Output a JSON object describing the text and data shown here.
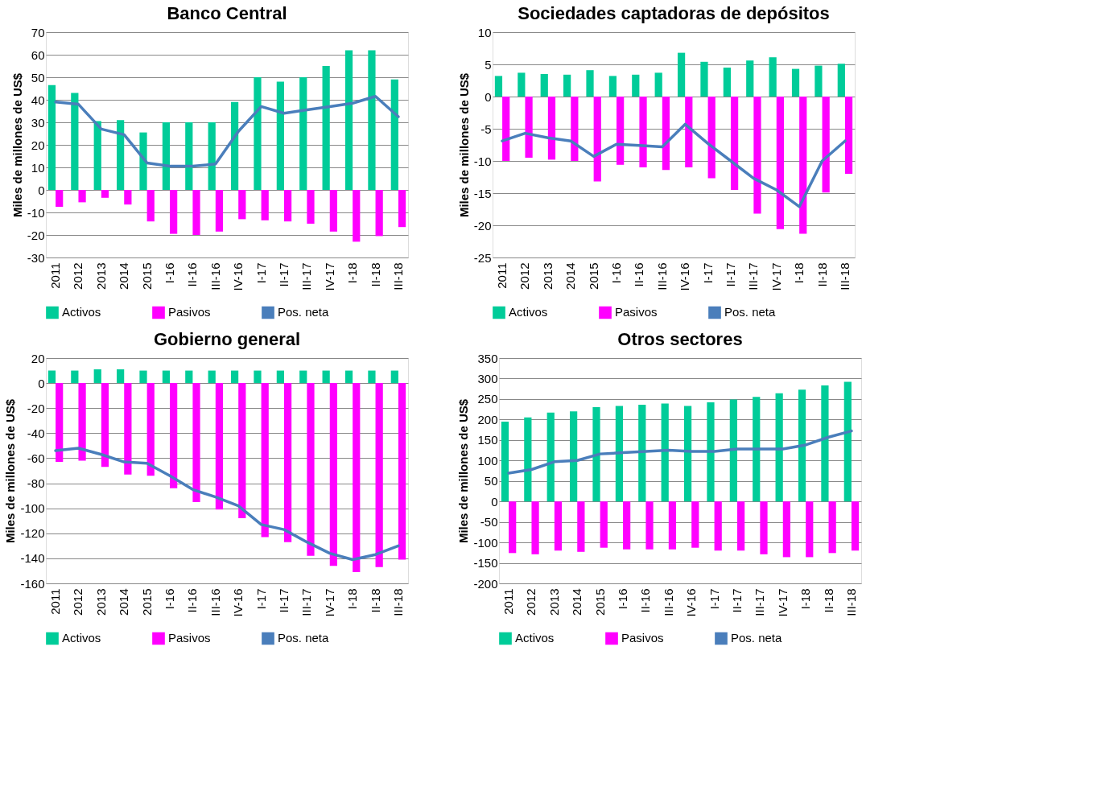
{
  "chart_data": [
    {
      "type": "bar",
      "title": "Banco Central",
      "ylabel": "Miles de millones de US$",
      "categories": [
        "2011",
        "2012",
        "2013",
        "2014",
        "2015",
        "I-16",
        "II-16",
        "III-16",
        "IV-16",
        "I-17",
        "II-17",
        "III-17",
        "IV-17",
        "I-18",
        "II-18",
        "III-18"
      ],
      "ylim": [
        -30,
        70
      ],
      "yticks": [
        -30,
        -20,
        -10,
        0,
        10,
        20,
        30,
        40,
        50,
        60,
        70
      ],
      "grid": "y",
      "legend": "bottom",
      "series": [
        {
          "name": "Activos",
          "color": "#00cc99",
          "values": [
            46.5,
            43,
            30.5,
            31,
            25.5,
            30,
            30,
            30,
            39,
            50,
            48,
            50,
            55,
            62,
            62,
            49
          ]
        },
        {
          "name": "Pasivos",
          "color": "#ff00ff",
          "values": [
            -7.5,
            -5.5,
            -3.5,
            -6.5,
            -14,
            -19.5,
            -20,
            -18.5,
            -13,
            -13.5,
            -14,
            -15,
            -18.5,
            -23,
            -20.5,
            -16.5
          ]
        },
        {
          "name": "Pos. neta",
          "color": "#4a7ebb",
          "type": "line",
          "values": [
            39,
            38,
            27,
            24.5,
            12,
            10.5,
            10.5,
            11.5,
            26,
            37,
            34,
            35.5,
            37,
            38.5,
            41.5,
            32.5
          ]
        }
      ]
    },
    {
      "type": "bar",
      "title": "Sociedades captadoras de depósitos",
      "ylabel": "Miles de millones de US$",
      "categories": [
        "2011",
        "2012",
        "2013",
        "2014",
        "2015",
        "I-16",
        "II-16",
        "III-16",
        "IV-16",
        "I-17",
        "II-17",
        "III-17",
        "IV-17",
        "I-18",
        "II-18",
        "III-18"
      ],
      "ylim": [
        -25,
        10
      ],
      "yticks": [
        -25,
        -20,
        -15,
        -10,
        -5,
        0,
        5,
        10
      ],
      "grid": "y",
      "legend": "bottom",
      "series": [
        {
          "name": "Activos",
          "color": "#00cc99",
          "values": [
            3.2,
            3.7,
            3.5,
            3.4,
            4.1,
            3.2,
            3.4,
            3.7,
            6.8,
            5.4,
            4.5,
            5.6,
            6.1,
            4.3,
            4.8,
            5.1
          ]
        },
        {
          "name": "Pasivos",
          "color": "#ff00ff",
          "values": [
            -10,
            -9.5,
            -9.8,
            -10,
            -13.2,
            -10.6,
            -11,
            -11.4,
            -11,
            -12.7,
            -14.5,
            -18.2,
            -20.6,
            -21.3,
            -14.9,
            -12
          ]
        },
        {
          "name": "Pos. neta",
          "color": "#4a7ebb",
          "type": "line",
          "values": [
            -6.9,
            -5.7,
            -6.4,
            -6.9,
            -9.3,
            -7.4,
            -7.6,
            -7.8,
            -4.3,
            -7.3,
            -10,
            -12.7,
            -14.5,
            -17.1,
            -10,
            -6.9
          ]
        }
      ]
    },
    {
      "type": "bar",
      "title": "Gobierno general",
      "ylabel": "Miles de millones de US$",
      "categories": [
        "2011",
        "2012",
        "2013",
        "2014",
        "2015",
        "I-16",
        "II-16",
        "III-16",
        "IV-16",
        "I-17",
        "II-17",
        "III-17",
        "IV-17",
        "I-18",
        "II-18",
        "III-18"
      ],
      "ylim": [
        -160,
        20
      ],
      "yticks": [
        -160,
        -140,
        -120,
        -100,
        -80,
        -60,
        -40,
        -20,
        0,
        20
      ],
      "grid": "y",
      "legend": "bottom",
      "series": [
        {
          "name": "Activos",
          "color": "#00cc99",
          "values": [
            10,
            10,
            11,
            11,
            10,
            10,
            10,
            10,
            10,
            10,
            10,
            10,
            10,
            10,
            10,
            10
          ]
        },
        {
          "name": "Pasivos",
          "color": "#ff00ff",
          "values": [
            -63,
            -62,
            -67,
            -73,
            -74,
            -84,
            -95,
            -101,
            -108,
            -123,
            -127,
            -138,
            -146,
            -151,
            -147,
            -141
          ]
        },
        {
          "name": "Pos. neta",
          "color": "#4a7ebb",
          "type": "line",
          "values": [
            -54,
            -52,
            -57,
            -63,
            -64,
            -74,
            -85,
            -91,
            -98,
            -113,
            -117,
            -127,
            -136,
            -141,
            -137,
            -130
          ]
        }
      ]
    },
    {
      "type": "bar",
      "title": "Otros sectores",
      "ylabel": "Miles de millones de US$",
      "categories": [
        "2011",
        "2012",
        "2013",
        "2014",
        "2015",
        "I-16",
        "II-16",
        "III-16",
        "IV-16",
        "I-17",
        "II-17",
        "III-17",
        "IV-17",
        "I-18",
        "II-18",
        "III-18"
      ],
      "ylim": [
        -200,
        350
      ],
      "yticks": [
        -200,
        -150,
        -100,
        -50,
        0,
        50,
        100,
        150,
        200,
        250,
        300,
        350
      ],
      "grid": "y",
      "legend": "bottom",
      "series": [
        {
          "name": "Activos",
          "color": "#00cc99",
          "values": [
            195,
            205,
            217,
            220,
            230,
            233,
            236,
            239,
            233,
            242,
            249,
            255,
            264,
            273,
            283,
            292
          ]
        },
        {
          "name": "Pasivos",
          "color": "#ff00ff",
          "values": [
            -126,
            -129,
            -120,
            -123,
            -113,
            -117,
            -117,
            -117,
            -113,
            -120,
            -120,
            -129,
            -136,
            -136,
            -126,
            -120
          ]
        },
        {
          "name": "Pos. neta",
          "color": "#4a7ebb",
          "type": "line",
          "values": [
            69,
            78,
            97,
            100,
            116,
            119,
            122,
            125,
            122,
            122,
            128,
            128,
            128,
            138,
            157,
            172
          ]
        }
      ]
    }
  ]
}
